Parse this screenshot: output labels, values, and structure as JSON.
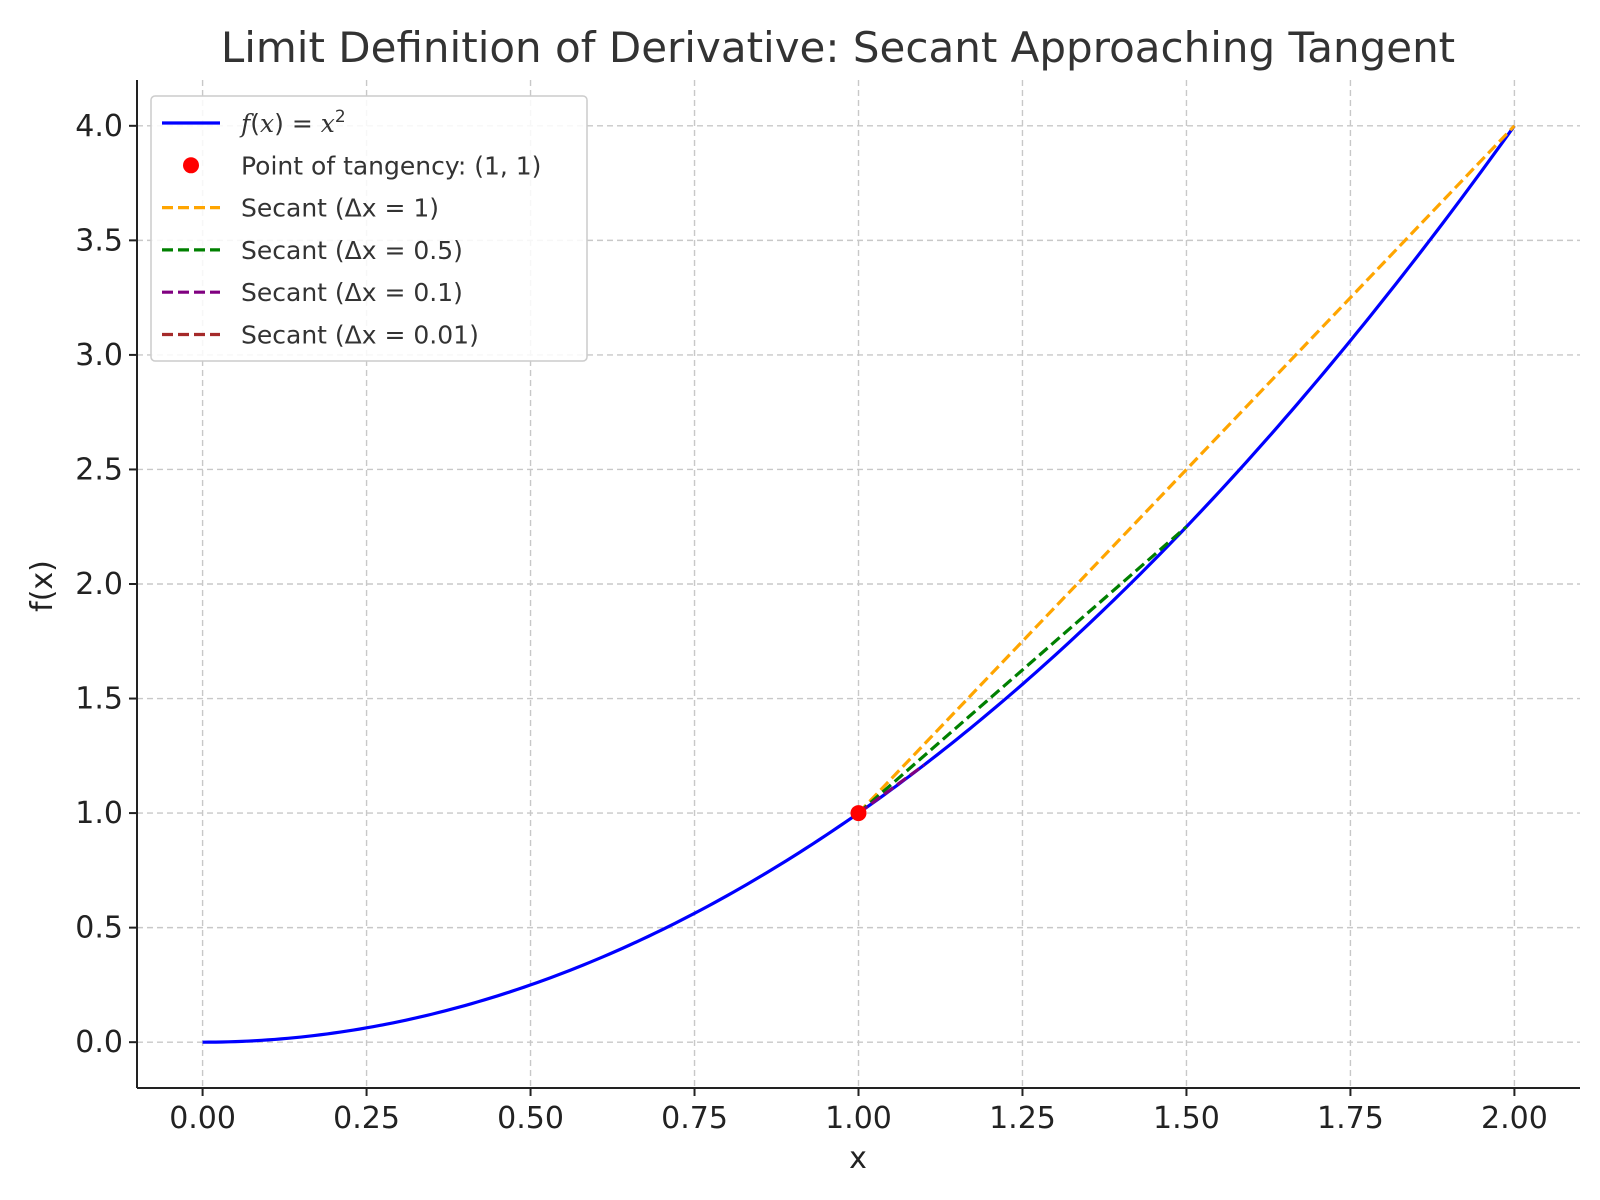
{
  "chart_data": {
    "type": "line",
    "title": "Limit Definition of Derivative: Secant Approaching Tangent",
    "xlabel": "x",
    "ylabel": "f(x)",
    "xlim": [
      -0.1,
      2.1
    ],
    "ylim": [
      -0.2,
      4.2
    ],
    "xticks": [
      0.0,
      0.25,
      0.5,
      0.75,
      1.0,
      1.25,
      1.5,
      1.75,
      2.0
    ],
    "xtick_labels": [
      "0.00",
      "0.25",
      "0.50",
      "0.75",
      "1.00",
      "1.25",
      "1.50",
      "1.75",
      "2.00"
    ],
    "yticks": [
      0.0,
      0.5,
      1.0,
      1.5,
      2.0,
      2.5,
      3.0,
      3.5,
      4.0
    ],
    "ytick_labels": [
      "0.0",
      "0.5",
      "1.0",
      "1.5",
      "2.0",
      "2.5",
      "3.0",
      "3.5",
      "4.0"
    ],
    "grid": true,
    "legend_position": "top-left",
    "function": {
      "expression": "x^2",
      "domain": [
        0,
        2
      ],
      "color": "#0000ff",
      "legend": {
        "prefix": "f",
        "open": "(",
        "var": "x",
        "close": ")",
        "equals": " = ",
        "base": "x",
        "exponent": "2"
      }
    },
    "point": {
      "name": "Point of tangency: (1, 1)",
      "x": 1,
      "y": 1,
      "color": "#ff0000"
    },
    "secants": [
      {
        "name": "Secant (Δx = 1)",
        "dx": 1,
        "x": [
          1,
          2
        ],
        "y": [
          1,
          4
        ],
        "color": "#ffa500"
      },
      {
        "name": "Secant (Δx = 0.5)",
        "dx": 0.5,
        "x": [
          1,
          1.5
        ],
        "y": [
          1,
          2.25
        ],
        "color": "#008000"
      },
      {
        "name": "Secant (Δx = 0.1)",
        "dx": 0.1,
        "x": [
          1,
          1.1
        ],
        "y": [
          1,
          1.21
        ],
        "color": "#800080"
      },
      {
        "name": "Secant (Δx = 0.01)",
        "dx": 0.01,
        "x": [
          1,
          1.01
        ],
        "y": [
          1,
          1.0201
        ],
        "color": "#a52a2a"
      }
    ]
  }
}
